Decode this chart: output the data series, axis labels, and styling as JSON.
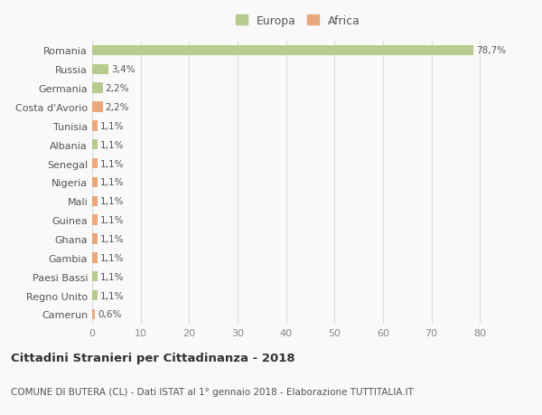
{
  "categories": [
    "Camerun",
    "Regno Unito",
    "Paesi Bassi",
    "Gambia",
    "Ghana",
    "Guinea",
    "Mali",
    "Nigeria",
    "Senegal",
    "Albania",
    "Tunisia",
    "Costa d'Avorio",
    "Germania",
    "Russia",
    "Romania"
  ],
  "values": [
    0.6,
    1.1,
    1.1,
    1.1,
    1.1,
    1.1,
    1.1,
    1.1,
    1.1,
    1.1,
    1.1,
    2.2,
    2.2,
    3.4,
    78.7
  ],
  "labels": [
    "0,6%",
    "1,1%",
    "1,1%",
    "1,1%",
    "1,1%",
    "1,1%",
    "1,1%",
    "1,1%",
    "1,1%",
    "1,1%",
    "1,1%",
    "2,2%",
    "2,2%",
    "3,4%",
    "78,7%"
  ],
  "continent": [
    "Africa",
    "Europa",
    "Europa",
    "Africa",
    "Africa",
    "Africa",
    "Africa",
    "Africa",
    "Africa",
    "Europa",
    "Africa",
    "Africa",
    "Europa",
    "Europa",
    "Europa"
  ],
  "color_europa": "#b5cc8e",
  "color_africa": "#e8a87c",
  "background_color": "#f9f9f9",
  "title": "Cittadini Stranieri per Cittadinanza - 2018",
  "subtitle": "COMUNE DI BUTERA (CL) - Dati ISTAT al 1° gennaio 2018 - Elaborazione TUTTITALIA.IT",
  "legend_europa": "Europa",
  "legend_africa": "Africa",
  "xlim": [
    0,
    85
  ],
  "xticks": [
    0,
    10,
    20,
    30,
    40,
    50,
    60,
    70,
    80
  ]
}
